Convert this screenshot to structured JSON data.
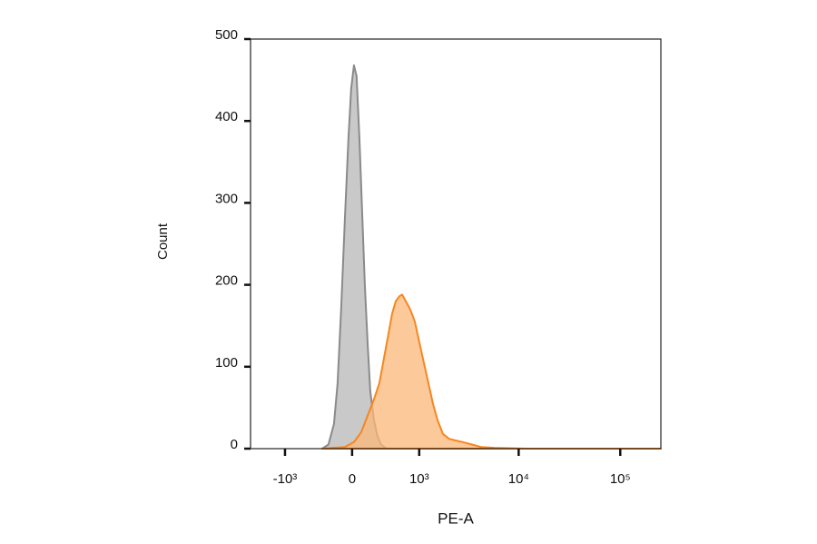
{
  "chart_data": {
    "type": "histogram-overlay",
    "x_label": "PE-A",
    "y_label": "Count",
    "xscale": "biexponential",
    "xlim": [
      -2270,
      251000
    ],
    "ylim": [
      0,
      500
    ],
    "xticks": [
      {
        "value": -1000,
        "label": "-10³"
      },
      0,
      {
        "value": 1000,
        "label": "10³"
      },
      {
        "value": 10000,
        "label": "10⁴"
      },
      {
        "value": 100000,
        "label": "10⁵"
      }
    ],
    "yticks": [
      0,
      100,
      200,
      300,
      400,
      500
    ],
    "series": [
      {
        "color": "#8a8a8a",
        "fill": "#c9c9c9",
        "x": [
          -336,
          -258,
          -194,
          -154,
          -115,
          -76,
          -38,
          -9,
          19,
          47,
          76,
          105,
          134,
          164,
          194,
          236,
          279,
          324,
          397
        ],
        "values": [
          0,
          5,
          30,
          80,
          170,
          280,
          380,
          440,
          468,
          455,
          380,
          290,
          200,
          130,
          70,
          35,
          15,
          5,
          0
        ]
      },
      {
        "color": "#f7861f",
        "fill": "#fbb77a",
        "x": [
          -336,
          -76,
          19,
          95,
          164,
          236,
          302,
          360,
          422,
          476,
          533,
          592,
          639,
          706,
          796,
          896,
          1003,
          1120,
          1251,
          1396,
          1555,
          1767,
          2047,
          2373,
          2805,
          3456,
          4255,
          5793,
          11920,
          251000
        ],
        "values": [
          0,
          2,
          8,
          20,
          40,
          60,
          80,
          110,
          140,
          165,
          180,
          186,
          188,
          180,
          170,
          155,
          130,
          105,
          80,
          55,
          35,
          18,
          12,
          10,
          8,
          5,
          2,
          1,
          0,
          0
        ]
      }
    ]
  }
}
